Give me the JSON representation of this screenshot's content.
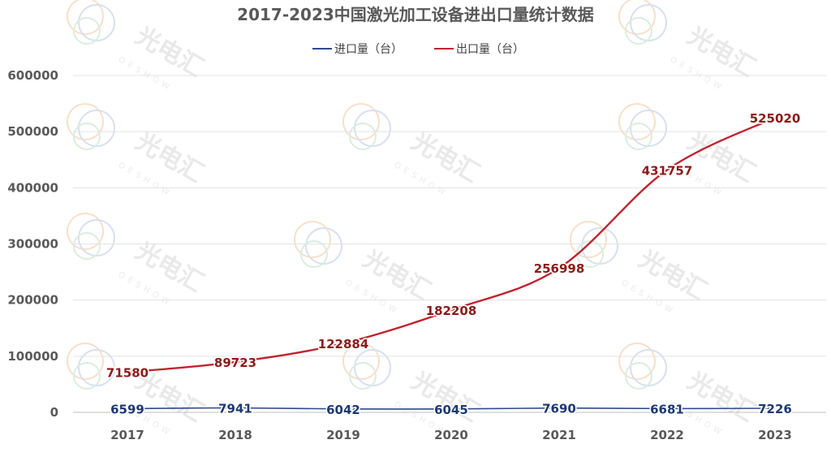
{
  "chart_data": {
    "type": "line",
    "title": "2017-2023中国激光加工设备进出口量统计数据",
    "categories": [
      "2017",
      "2018",
      "2019",
      "2020",
      "2021",
      "2022",
      "2023"
    ],
    "series": [
      {
        "name": "进口量（台）",
        "color": "#2f4b8c",
        "label_color": "#1f3870",
        "values": [
          6599,
          7941,
          6042,
          6045,
          7690,
          6681,
          7226
        ],
        "labels": [
          "6599",
          "7941",
          "6042",
          "6045",
          "7690",
          "6681",
          "7226"
        ]
      },
      {
        "name": "出口量（台）",
        "color": "#c0232f",
        "label_color": "#8b1a1a",
        "values": [
          71580,
          89723,
          122884,
          182208,
          256998,
          431757,
          525020
        ],
        "labels": [
          "71580",
          "89723",
          "122884",
          "182208",
          "256998",
          "431757",
          "525020"
        ]
      }
    ],
    "ylim": [
      0,
      600000
    ],
    "yticks": [
      0,
      100000,
      200000,
      300000,
      400000,
      500000,
      600000
    ],
    "ytick_labels": [
      "0",
      "100000",
      "200000",
      "300000",
      "400000",
      "500000",
      "600000"
    ],
    "grid": true,
    "legend_position": "top-center",
    "xlabel": "",
    "ylabel": ""
  },
  "watermark": {
    "text": "光电汇",
    "subtext": "OESHOW"
  }
}
